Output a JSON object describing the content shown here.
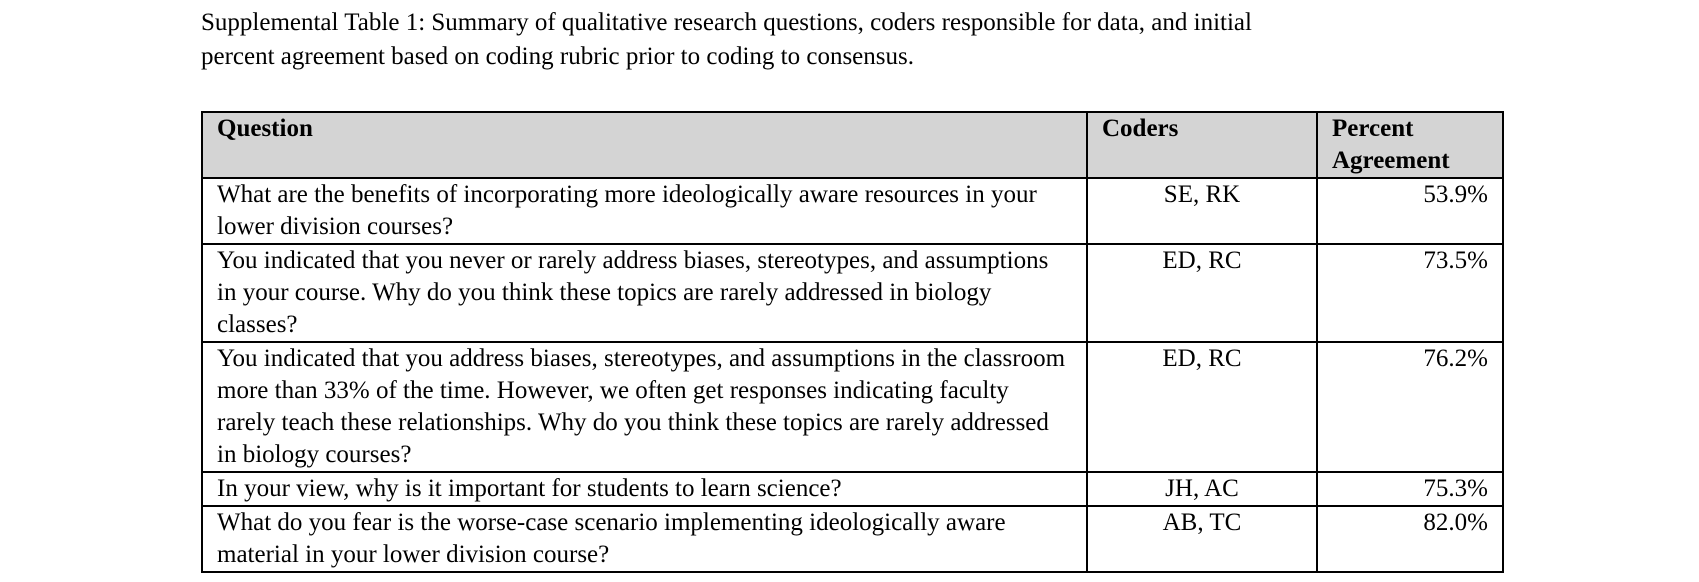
{
  "caption": {
    "line1": "Supplemental Table 1: Summary of qualitative research questions, coders responsible for data, and initial",
    "line2": "percent agreement based on coding rubric prior to coding to consensus."
  },
  "table": {
    "headers": [
      "Question",
      "Coders",
      "Percent Agreement"
    ],
    "rows": [
      {
        "question": "What are the benefits of incorporating more ideologically aware resources in your lower division courses?",
        "coders": "SE, RK",
        "percent": "53.9%"
      },
      {
        "question": "You indicated that you never or rarely address biases, stereotypes, and assumptions in your course. Why do you think these topics are rarely addressed in biology classes?",
        "coders": "ED, RC",
        "percent": "73.5%"
      },
      {
        "question": "You indicated that you address biases, stereotypes, and assumptions in the classroom more than 33% of the time. However, we often get responses indicating faculty rarely teach these relationships. Why do you think these topics are rarely addressed in biology courses?",
        "coders": "ED, RC",
        "percent": "76.2%"
      },
      {
        "question": "In your view, why is it important for students to learn science?",
        "coders": "JH, AC",
        "percent": "75.3%"
      },
      {
        "question": "What do you fear is the worse-case scenario implementing ideologically aware material in your lower division course?",
        "coders": "AB, TC",
        "percent": "82.0%"
      }
    ]
  }
}
